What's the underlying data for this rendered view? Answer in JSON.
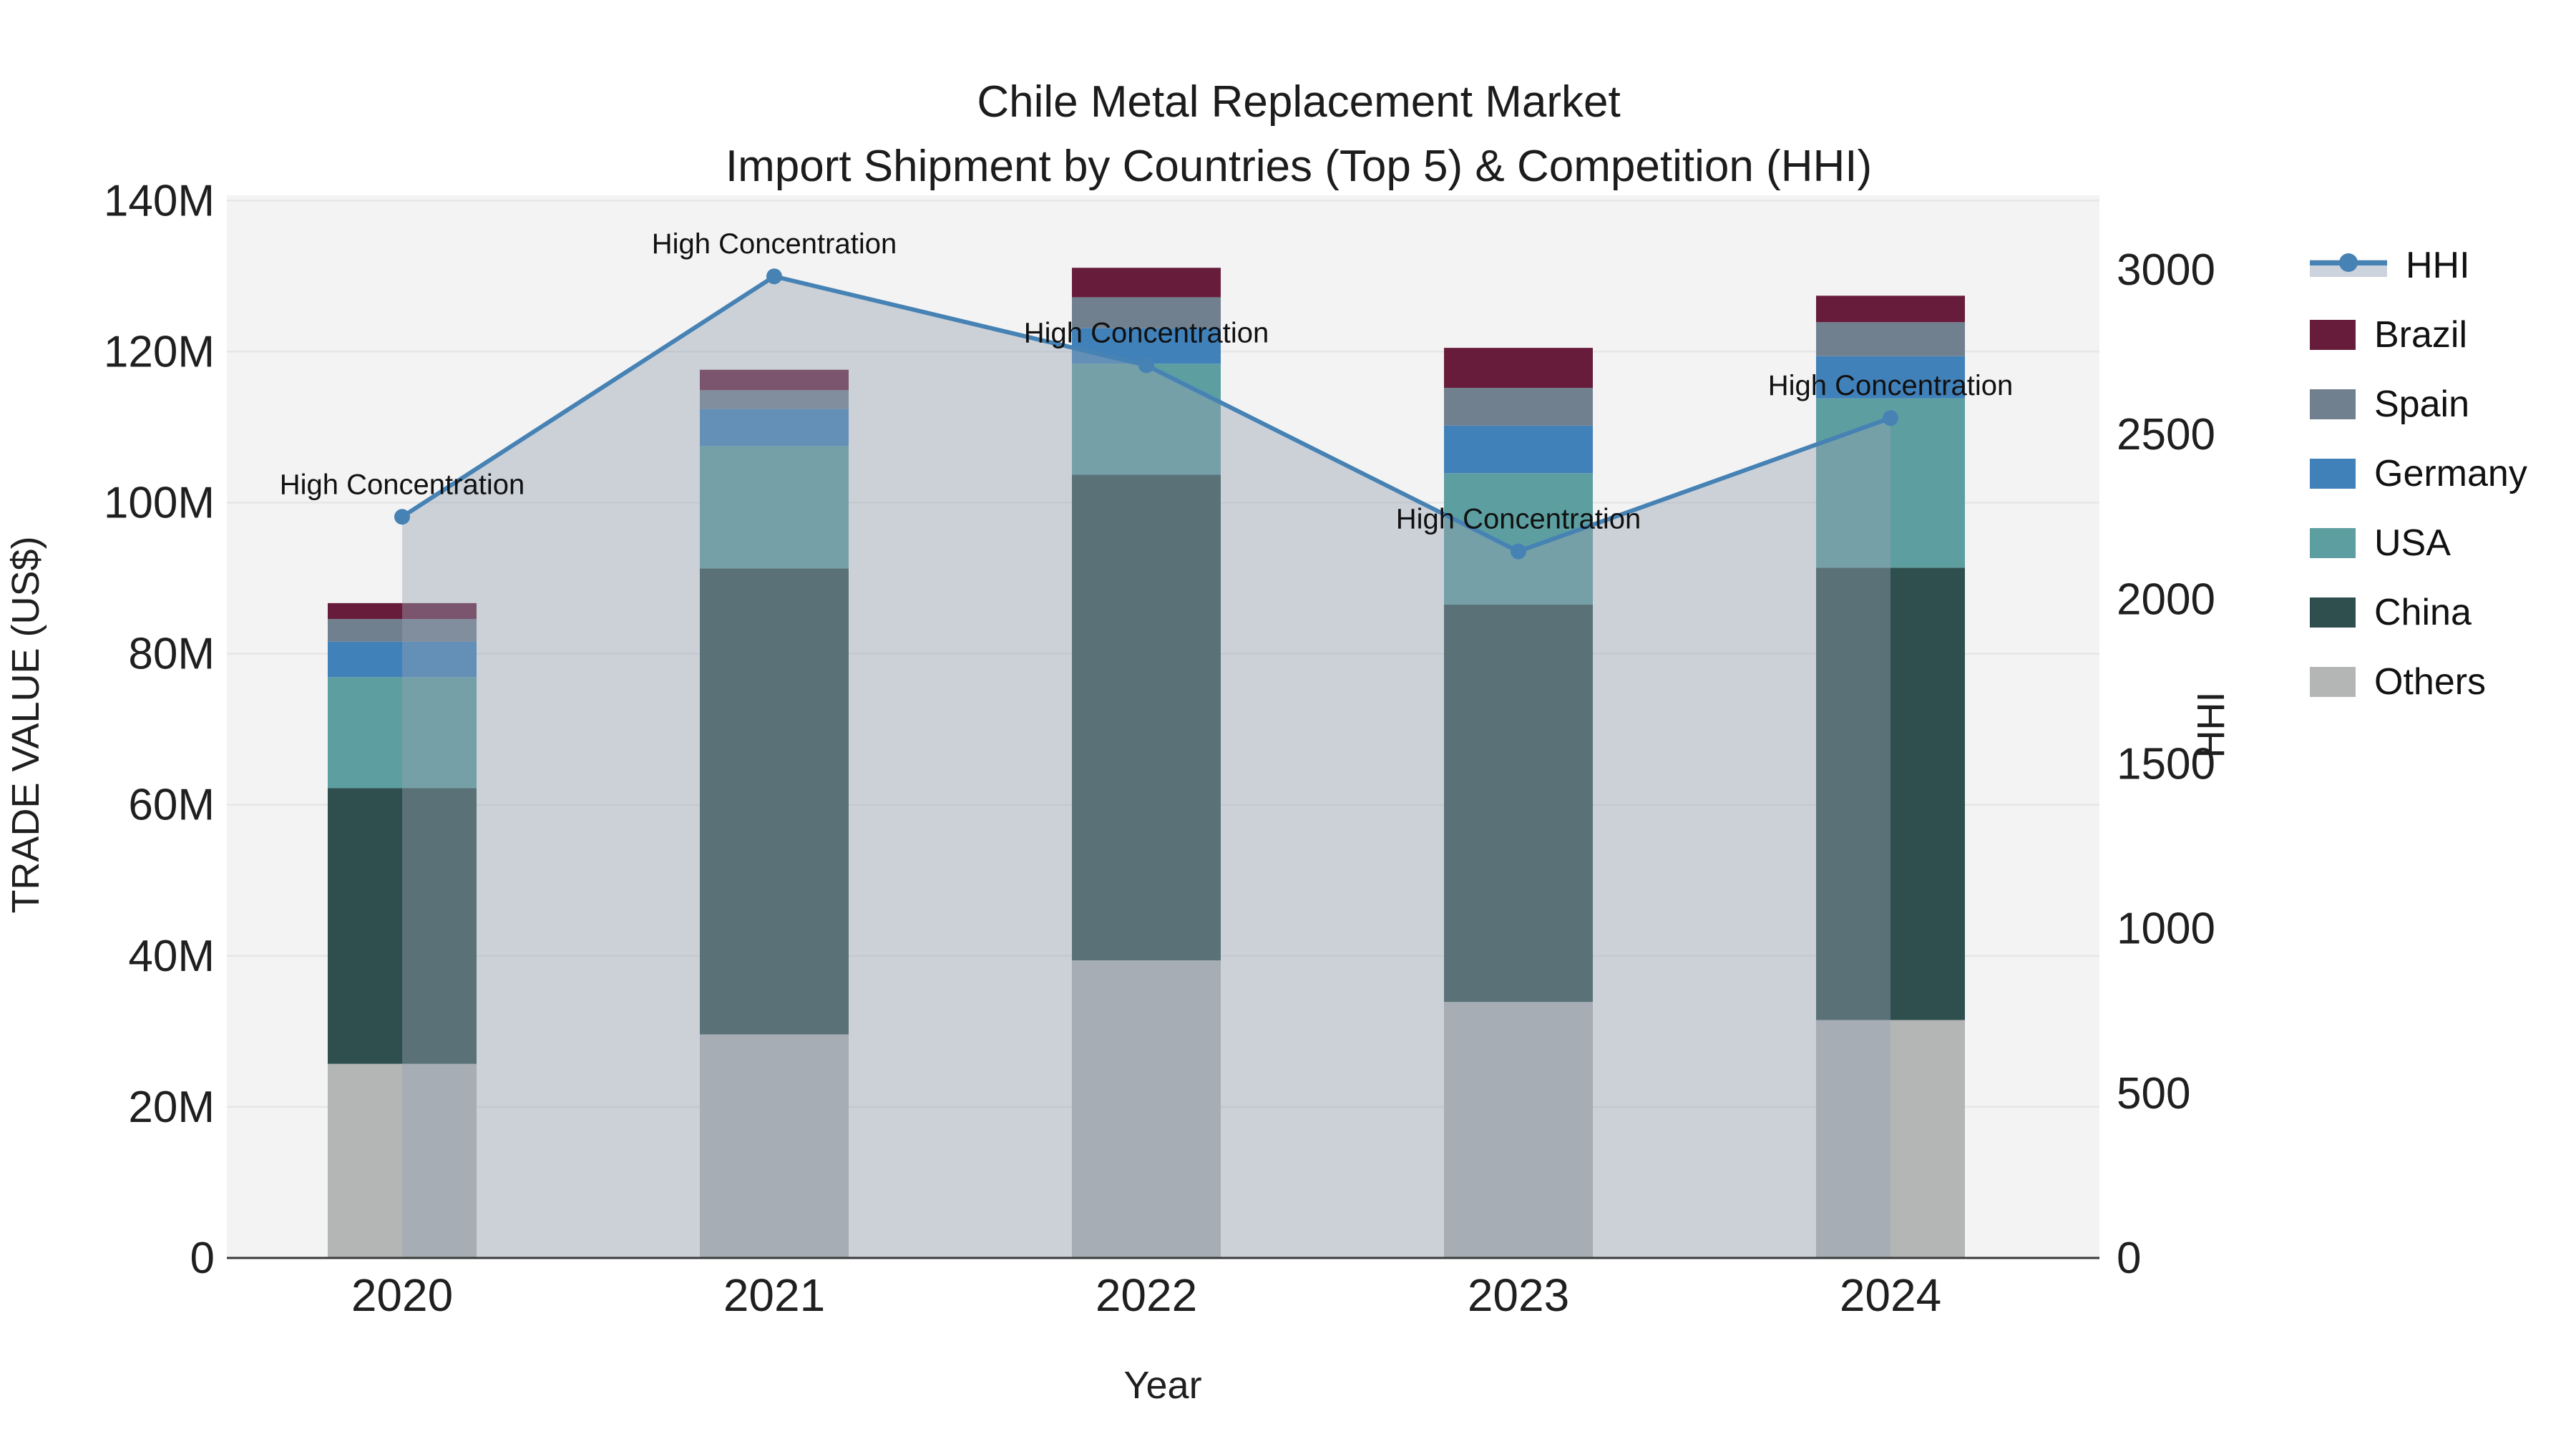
{
  "figure": {
    "title_line1": "Chile Metal Replacement Market",
    "title_line2": "Import Shipment by Countries (Top 5) & Competition (HHI)",
    "background_color": "#ffffff",
    "plot_background_color": "#f3f3f3",
    "grid_color": "#e4e4e4",
    "axis_line_color": "#3a3a3a",
    "text_color": "#1f1f1f"
  },
  "chart_data": {
    "type": "stacked-bar+line",
    "title": "Chile Metal Replacement Market\nImport Shipment by Countries (Top 5) & Competition (HHI)",
    "categories": [
      "2020",
      "2021",
      "2022",
      "2023",
      "2024"
    ],
    "xlabel": "Year",
    "y_left": {
      "label": "TRADE VALUE (US$)",
      "tick_labels": [
        "0",
        "20M",
        "40M",
        "60M",
        "80M",
        "100M",
        "120M",
        "140M"
      ],
      "tick_values": [
        0,
        20,
        40,
        60,
        80,
        100,
        120,
        140
      ],
      "range": [
        0,
        140.7
      ],
      "unit": "million US$"
    },
    "y_right": {
      "label": "HHI",
      "tick_labels": [
        "0",
        "500",
        "1000",
        "1500",
        "2000",
        "2500",
        "3000"
      ],
      "tick_values": [
        0,
        500,
        1000,
        1500,
        2000,
        2500,
        3000
      ],
      "range": [
        0,
        3190
      ]
    },
    "grid": "horizontal",
    "legend_position": "right",
    "series": [
      {
        "name": "Others",
        "color": "#b4b6b5",
        "values": [
          25.7,
          29.6,
          39.4,
          33.9,
          31.5
        ]
      },
      {
        "name": "China",
        "color": "#2f4f4f",
        "values": [
          36.5,
          61.7,
          64.3,
          52.6,
          59.9
        ]
      },
      {
        "name": "USA",
        "color": "#5d9fa1",
        "values": [
          14.7,
          16.2,
          14.7,
          17.4,
          22.4
        ]
      },
      {
        "name": "Germany",
        "color": "#4181ba",
        "values": [
          4.7,
          4.9,
          4.7,
          6.3,
          5.6
        ]
      },
      {
        "name": "Spain",
        "color": "#71808f",
        "values": [
          3.0,
          2.5,
          4.1,
          5.0,
          4.5
        ]
      },
      {
        "name": "Brazil",
        "color": "#681c3b",
        "values": [
          2.1,
          2.7,
          3.9,
          5.3,
          3.5
        ]
      }
    ],
    "bar_totals": [
      86.7,
      117.6,
      131.1,
      120.5,
      127.4
    ],
    "line_series": {
      "name": "HHI",
      "color": "#4682b4",
      "values": [
        2250,
        2980,
        2710,
        2145,
        2550
      ],
      "area_fill_color": "#96a2b2",
      "area_fill_opacity": 0.42
    },
    "annotations": [
      {
        "x": "2020",
        "text": "High Concentration"
      },
      {
        "x": "2021",
        "text": "High Concentration"
      },
      {
        "x": "2022",
        "text": "High Concentration"
      },
      {
        "x": "2023",
        "text": "High Concentration"
      },
      {
        "x": "2024",
        "text": "High Concentration"
      }
    ]
  },
  "legend": {
    "items": [
      {
        "label": "HHI",
        "type": "line",
        "color": "#4682b4"
      },
      {
        "label": "Brazil",
        "type": "patch",
        "color": "#681c3b"
      },
      {
        "label": "Spain",
        "type": "patch",
        "color": "#71808f"
      },
      {
        "label": "Germany",
        "type": "patch",
        "color": "#4181ba"
      },
      {
        "label": "USA",
        "type": "patch",
        "color": "#5d9fa1"
      },
      {
        "label": "China",
        "type": "patch",
        "color": "#2f4f4f"
      },
      {
        "label": "Others",
        "type": "patch",
        "color": "#b4b6b5"
      }
    ]
  }
}
